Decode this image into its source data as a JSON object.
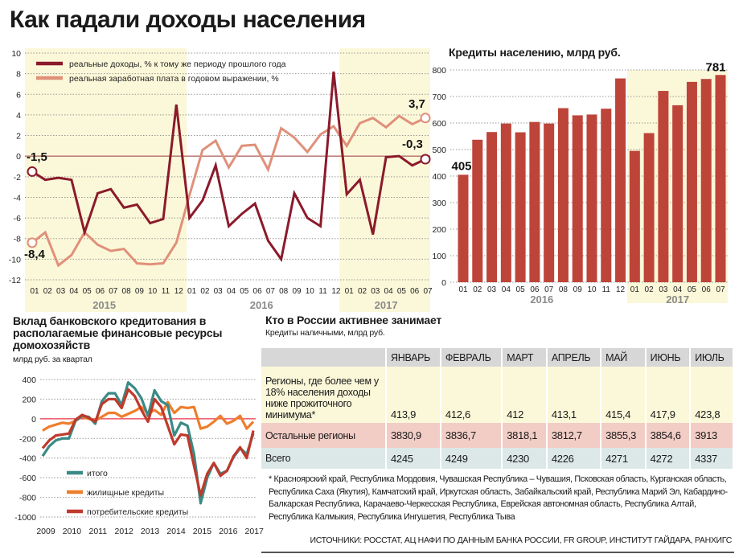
{
  "title": "Как падали доходы населения",
  "colors": {
    "dark_red": "#8b1a2b",
    "light_red": "#e0907a",
    "bar": "#bd4439",
    "teal": "#3a8a85",
    "orange": "#ee7d2c",
    "cons": "#c0392b",
    "yellow": "#fbf8d9",
    "zero": "#e8344a"
  },
  "chart_data": [
    {
      "type": "line",
      "title": "",
      "x": [
        "01",
        "02",
        "03",
        "04",
        "05",
        "06",
        "07",
        "08",
        "09",
        "10",
        "11",
        "12",
        "01",
        "02",
        "03",
        "04",
        "05",
        "06",
        "07",
        "08",
        "09",
        "10",
        "11",
        "12",
        "01",
        "02",
        "03",
        "04",
        "05",
        "06",
        "07"
      ],
      "year_groups": [
        {
          "label": "2015",
          "count": 12,
          "highlight": true
        },
        {
          "label": "2016",
          "count": 12,
          "highlight": false
        },
        {
          "label": "2017",
          "count": 7,
          "highlight": true
        }
      ],
      "ylim": [
        -12,
        10
      ],
      "yticks": [
        10,
        8,
        6,
        4,
        2,
        0,
        -2,
        -4,
        -6,
        -8,
        -10,
        -12
      ],
      "series": [
        {
          "name": "реальные доходы, % к тому же периоду прошлого года",
          "color": "#8b1a2b",
          "values": [
            -1.5,
            -2.3,
            -2.1,
            -2.3,
            -7.4,
            -3.6,
            -3.2,
            -5.0,
            -4.7,
            -6.5,
            -6.1,
            5.0,
            -6.0,
            -4.3,
            -0.9,
            -6.8,
            -5.6,
            -4.6,
            -8.2,
            -10.0,
            -3.6,
            -6.0,
            -6.8,
            8.2,
            -3.7,
            -2.3,
            -7.6,
            -0.1,
            0.0,
            -0.9,
            -0.3
          ]
        },
        {
          "name": "реальная заработная плата в годовом выражении, %",
          "color": "#e0907a",
          "values": [
            -8.4,
            -7.4,
            -10.6,
            -9.6,
            -7.4,
            -8.6,
            -9.2,
            -9.0,
            -10.4,
            -10.5,
            -10.4,
            -8.4,
            -3.8,
            0.6,
            1.5,
            -1.1,
            1.0,
            1.1,
            -1.3,
            2.7,
            1.8,
            0.4,
            2.1,
            2.9,
            1.0,
            3.2,
            3.7,
            2.8,
            3.9,
            3.1,
            3.7
          ]
        }
      ],
      "annotations": {
        "start_income": "-1,5",
        "start_wage": "-8,4",
        "end_wage": "3,7",
        "end_income": "-0,3"
      }
    },
    {
      "type": "bar",
      "title": "Кредиты населению, млрд руб.",
      "categories": [
        "01",
        "02",
        "03",
        "04",
        "05",
        "06",
        "07",
        "08",
        "09",
        "10",
        "11",
        "12",
        "01",
        "02",
        "03",
        "04",
        "05",
        "06",
        "07"
      ],
      "year_groups": [
        {
          "label": "2016",
          "count": 12,
          "highlight": false
        },
        {
          "label": "2017",
          "count": 7,
          "highlight": true
        }
      ],
      "values": [
        405,
        537,
        566,
        598,
        565,
        604,
        598,
        656,
        629,
        632,
        654,
        768,
        495,
        562,
        721,
        667,
        755,
        766,
        781
      ],
      "ylim": [
        0,
        800
      ],
      "yticks": [
        800,
        700,
        600,
        500,
        400,
        300,
        200,
        100,
        0
      ],
      "data_labels": {
        "first": "405",
        "last": "781"
      }
    },
    {
      "type": "line",
      "title": "Вклад банковского кредитования в располагаемые финансовые ресурсы домохозяйств",
      "ylabel": "млрд руб. за квартал",
      "xticks": [
        "2009",
        "2010",
        "2011",
        "2012",
        "2013",
        "2014",
        "2015",
        "2016",
        "2017"
      ],
      "ylim": [
        -1000,
        400
      ],
      "yticks": [
        400,
        200,
        0,
        -200,
        -400,
        -600,
        -800,
        -1000
      ],
      "series": [
        {
          "name": "жилищные кредиты",
          "color": "#ee7d2c",
          "values": [
            -120,
            -80,
            -60,
            -40,
            -50,
            -20,
            20,
            0,
            -20,
            20,
            60,
            60,
            20,
            50,
            80,
            120,
            50,
            90,
            40,
            170,
            60,
            120,
            110,
            120,
            -100,
            -80,
            -30,
            30,
            -50,
            -20,
            30,
            -100,
            -30
          ]
        },
        {
          "name": "итого",
          "color": "#3a8a85",
          "values": [
            -380,
            -280,
            -220,
            -200,
            -200,
            -20,
            30,
            20,
            -50,
            180,
            260,
            260,
            140,
            370,
            310,
            210,
            30,
            290,
            180,
            140,
            -170,
            -40,
            -70,
            -360,
            -860,
            -600,
            -450,
            -560,
            -530,
            -390,
            -300,
            -360,
            -150
          ]
        },
        {
          "name": "потребительские кредиты",
          "color": "#c0392b",
          "values": [
            -300,
            -220,
            -170,
            -160,
            -150,
            -10,
            40,
            10,
            -30,
            150,
            200,
            200,
            110,
            300,
            230,
            90,
            -30,
            200,
            120,
            -70,
            -260,
            -160,
            -170,
            -480,
            -780,
            -560,
            -450,
            -580,
            -530,
            -380,
            -290,
            -400,
            -120
          ]
        }
      ],
      "legend_order": [
        "итого",
        "жилищные кредиты",
        "потребительские кредиты"
      ]
    }
  ],
  "table": {
    "title": "Кто в России активнее занимает",
    "subtitle": "Кредиты наличными, млрд руб.",
    "columns": [
      "ЯНВАРЬ",
      "ФЕВРАЛЬ",
      "МАРТ",
      "АПРЕЛЬ",
      "МАЙ",
      "ИЮНЬ",
      "ИЮЛЬ"
    ],
    "rows": [
      {
        "label": "Регионы, где более чем у 18% населения доходы ниже прожиточного минимума*",
        "values": [
          "413,9",
          "412,6",
          "412",
          "413,1",
          "415,4",
          "417,9",
          "423,8"
        ]
      },
      {
        "label": "Остальные регионы",
        "values": [
          "3830,9",
          "3836,7",
          "3818,1",
          "3812,7",
          "3855,3",
          "3854,6",
          "3913"
        ]
      },
      {
        "label": "Всего",
        "values": [
          "4245",
          "4249",
          "4230",
          "4226",
          "4271",
          "4272",
          "4337"
        ]
      }
    ],
    "footnote": "* Красноярский край, Республика Мордовия, Чувашская Республика – Чувашия, Псковская область, Курганская область, Республика Саха (Якутия), Камчатский край, Иркутская область, Забайкальский край, Республика Марий Эл, Кабардино-Балкарская Республика, Карачаево-Черкесская Республика, Еврейская автономная область, Республика Алтай, Республика Калмыкия, Республика Ингушетия, Республика Тыва"
  },
  "sources": "ИСТОЧНИКИ: РОССТАТ, АЦ НАФИ ПО ДАННЫМ БАНКА РОССИИ, FR GROUP, ИНСТИТУТ ГАЙДАРА, РАНХИГС"
}
